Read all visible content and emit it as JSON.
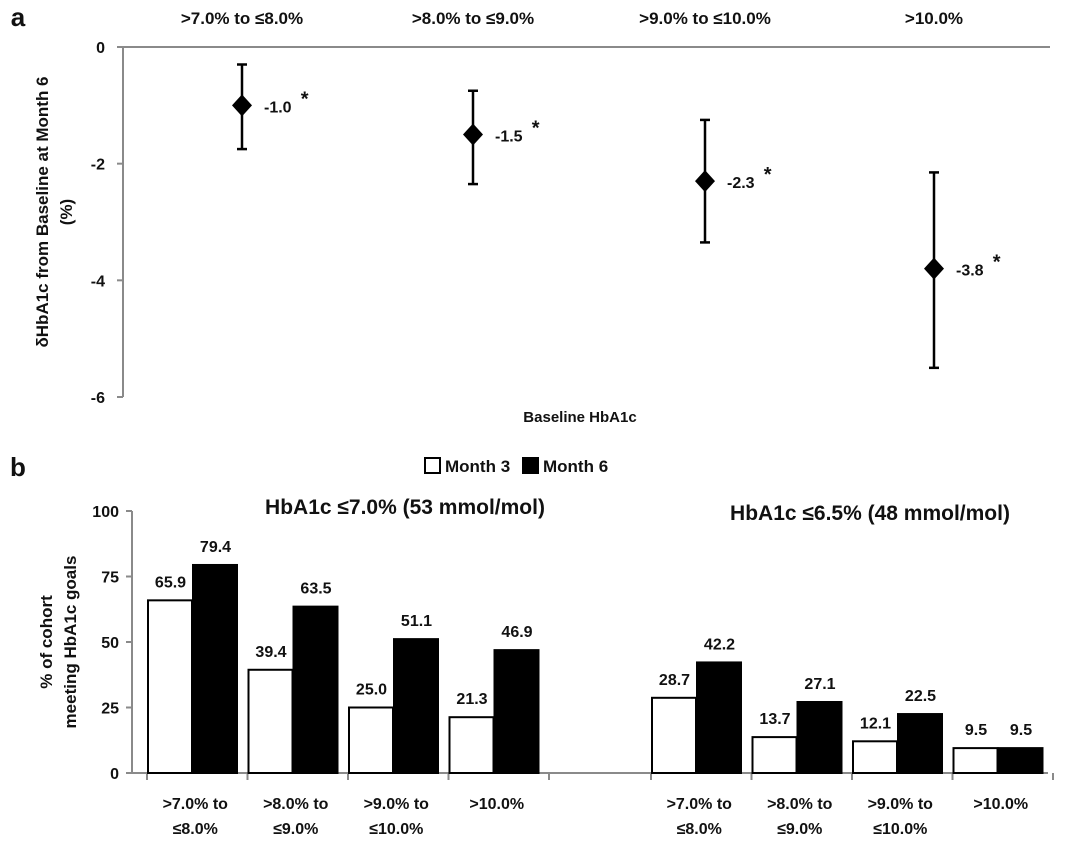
{
  "chart_data": [
    {
      "panel_label": "a",
      "type": "scatter",
      "error_bars": true,
      "categories": [
        ">7.0% to ≤8.0%",
        ">8.0% to ≤9.0%",
        ">9.0% to ≤10.0%",
        ">10.0%"
      ],
      "values": [
        -1.0,
        -1.5,
        -2.3,
        -3.8
      ],
      "value_labels": [
        "-1.0",
        "-1.5",
        "-2.3",
        "-3.8"
      ],
      "significance_marker": "*",
      "error_low": [
        -1.75,
        -2.35,
        -3.35,
        -5.5
      ],
      "error_high": [
        -0.3,
        -0.75,
        -1.25,
        -2.15
      ],
      "ylabel_line1": "δHbA1c from Baseline at Month 6",
      "ylabel_line2": "(%)",
      "xlabel": "Baseline HbA1c",
      "ylim": [
        -6,
        0
      ],
      "yticks": [
        "0",
        "-2",
        "-4",
        "-6"
      ],
      "marker": "diamond",
      "grid": false
    },
    {
      "panel_label": "b",
      "type": "bar",
      "legend": {
        "position": "top-center",
        "items": [
          "Month 3",
          "Month 6"
        ],
        "colors": [
          "#ffffff",
          "#000000"
        ]
      },
      "ylabel_line1": "% of cohort",
      "ylabel_line2": "meeting HbA1c goals",
      "ylim": [
        0,
        100
      ],
      "yticks": [
        "0",
        "25",
        "50",
        "75",
        "100"
      ],
      "grid": false,
      "groups": [
        {
          "title": "HbA1c ≤7.0% (53 mmol/mol)",
          "categories": [
            [
              ">7.0% to",
              "≤8.0%"
            ],
            [
              ">8.0% to",
              "≤9.0%"
            ],
            [
              ">9.0% to",
              "≤10.0%"
            ],
            [
              ">10.0%",
              ""
            ]
          ],
          "series": [
            {
              "name": "Month 3",
              "values": [
                65.9,
                39.4,
                25.0,
                21.3
              ],
              "labels": [
                "65.9",
                "39.4",
                "25.0",
                "21.3"
              ]
            },
            {
              "name": "Month 6",
              "values": [
                79.4,
                63.5,
                51.1,
                46.9
              ],
              "labels": [
                "79.4",
                "63.5",
                "51.1",
                "46.9"
              ]
            }
          ]
        },
        {
          "title": "HbA1c ≤6.5% (48 mmol/mol)",
          "categories": [
            [
              ">7.0% to",
              "≤8.0%"
            ],
            [
              ">8.0% to",
              "≤9.0%"
            ],
            [
              ">9.0% to",
              "≤10.0%"
            ],
            [
              ">10.0%",
              ""
            ]
          ],
          "series": [
            {
              "name": "Month 3",
              "values": [
                28.7,
                13.7,
                12.1,
                9.5
              ],
              "labels": [
                "28.7",
                "13.7",
                "12.1",
                "9.5"
              ]
            },
            {
              "name": "Month 6",
              "values": [
                42.2,
                27.1,
                22.5,
                9.5
              ],
              "labels": [
                "42.2",
                "27.1",
                "22.5",
                "9.5"
              ]
            }
          ]
        }
      ]
    }
  ]
}
